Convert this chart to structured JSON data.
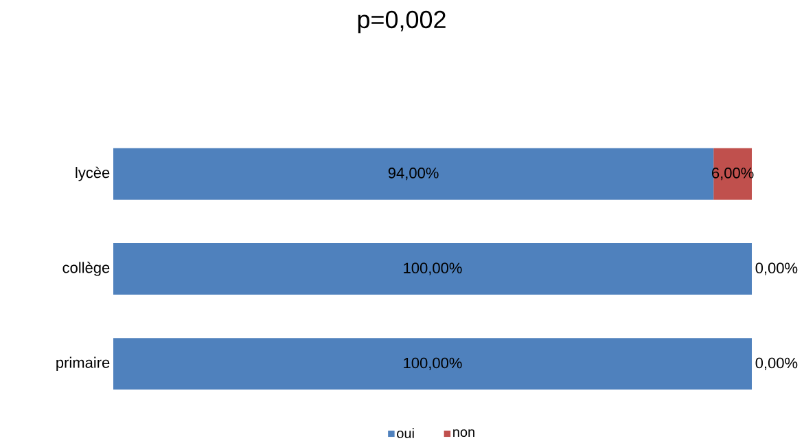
{
  "chart_data": {
    "type": "bar",
    "title": "p=0,002",
    "orientation": "horizontal",
    "stacked": true,
    "legend": "bottom",
    "categories": [
      "lycèe",
      "collège",
      "primaire"
    ],
    "series": [
      {
        "name": "oui",
        "color": "#4f81bd",
        "values": [
          94,
          100,
          100
        ],
        "value_labels": [
          "94,00%",
          "100,00%",
          "100,00%"
        ]
      },
      {
        "name": "non",
        "color": "#c0504d",
        "values": [
          6,
          0,
          0
        ],
        "value_labels": [
          "6,00%",
          "0,00%",
          "0,00%"
        ]
      }
    ]
  }
}
